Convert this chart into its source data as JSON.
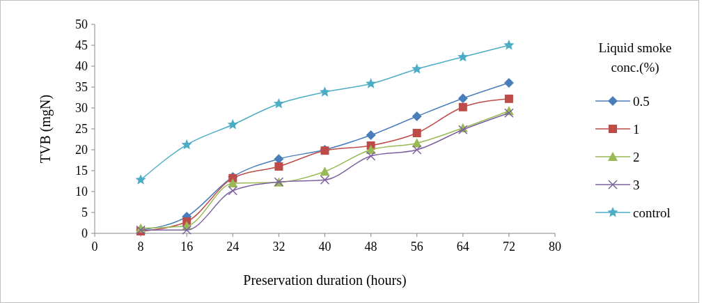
{
  "chart_data": {
    "type": "line",
    "xlabel": "Preservation duration  (hours)",
    "ylabel": "TVB (mgN)",
    "legend_title": "Liquid  smoke conc.(%)",
    "legend": "right",
    "grid": false,
    "line_style": "solid",
    "x": [
      8,
      16,
      24,
      32,
      40,
      48,
      56,
      64,
      72
    ],
    "xlim": [
      0,
      80
    ],
    "xticks": [
      0,
      8,
      16,
      24,
      32,
      40,
      48,
      56,
      64,
      72,
      80
    ],
    "ylim": [
      0,
      50
    ],
    "yticks": [
      0,
      5,
      10,
      15,
      20,
      25,
      30,
      35,
      40,
      45,
      50
    ],
    "series": [
      {
        "name": "0.5",
        "color": "#4a7ebb",
        "marker": "diamond",
        "values": [
          0.8,
          4,
          13.5,
          17.8,
          20,
          23.5,
          28,
          32.3,
          36
        ]
      },
      {
        "name": "1",
        "color": "#be4b48",
        "marker": "square",
        "values": [
          0.5,
          2.8,
          13.2,
          16,
          19.8,
          21,
          24,
          30.2,
          32.2
        ]
      },
      {
        "name": "2",
        "color": "#98b954",
        "marker": "triangle",
        "values": [
          1.2,
          1.8,
          12,
          12.2,
          14.8,
          20,
          21.6,
          25.2,
          29.3
        ]
      },
      {
        "name": "3",
        "color": "#7d60a0",
        "marker": "cross",
        "values": [
          0.8,
          0.8,
          10.2,
          12.3,
          12.8,
          18.5,
          20,
          24.8,
          28.8
        ]
      },
      {
        "name": "control",
        "color": "#4bacc6",
        "marker": "star",
        "values": [
          12.8,
          21.2,
          26,
          31,
          33.8,
          35.8,
          39.3,
          42.2,
          45
        ]
      }
    ]
  }
}
